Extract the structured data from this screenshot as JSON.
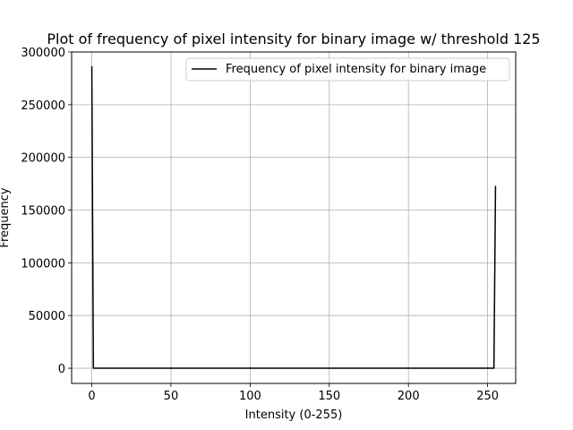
{
  "chart_data": {
    "type": "line",
    "title": "Plot of frequency of pixel intensity for binary image w/ threshold 125",
    "xlabel": "Intensity (0-255)",
    "ylabel": "Frequency",
    "xlim": [
      -12.75,
      267.75
    ],
    "ylim": [
      -14400,
      300000
    ],
    "x_ticks": [
      0,
      50,
      100,
      150,
      200,
      250
    ],
    "x_tick_labels": [
      "0",
      "50",
      "100",
      "150",
      "200",
      "250"
    ],
    "y_ticks": [
      0,
      50000,
      100000,
      150000,
      200000,
      250000,
      300000
    ],
    "y_tick_labels": [
      "0",
      "50000",
      "100000",
      "150000",
      "200000",
      "250000",
      "300000"
    ],
    "grid": true,
    "legend_position": "upper-right",
    "series": [
      {
        "name": "Frequency of pixel intensity for binary image",
        "color": "#000000",
        "x": [
          0,
          1,
          254,
          255
        ],
        "y": [
          286500,
          0,
          0,
          173000
        ]
      }
    ]
  }
}
